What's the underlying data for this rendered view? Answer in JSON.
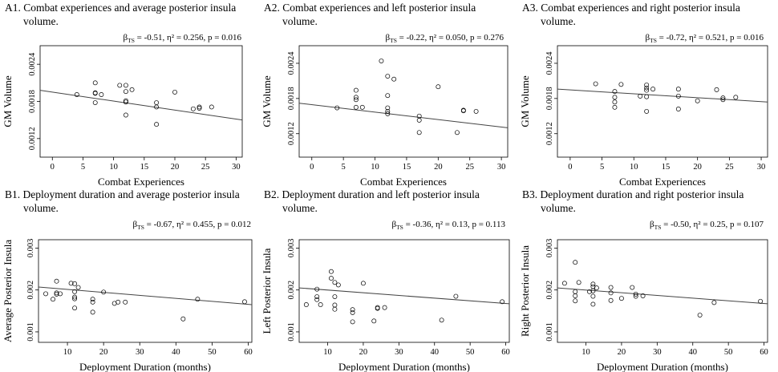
{
  "chart_data": [
    {
      "id": "A1",
      "type": "scatter",
      "title": "A1. Combat experiences and average posterior insula",
      "title_cont": "volume.",
      "stat_beta": "β",
      "stat_sub": "TS",
      "stat_rest": "= -0.51, η² = 0.256, p = 0.016",
      "xlabel": "Combat Experiences",
      "ylabel": "GM Volume",
      "xlim": [
        -2,
        31
      ],
      "ylim": [
        0.0009,
        0.0027
      ],
      "xticks": [
        0,
        5,
        10,
        15,
        20,
        25,
        30
      ],
      "xtick_labels": [
        "0",
        "5",
        "10",
        "15",
        "20",
        "25",
        "30"
      ],
      "yticks": [
        0.0012,
        0.0018,
        0.0024
      ],
      "ytick_labels": [
        "0.0012",
        "0.0018",
        "0.0024"
      ],
      "fit": [
        [
          -2,
          0.00198
        ],
        [
          31,
          0.0015
        ]
      ],
      "points": [
        [
          4,
          0.00191
        ],
        [
          7,
          0.00193
        ],
        [
          7,
          0.00194
        ],
        [
          7,
          0.00178
        ],
        [
          7,
          0.0021
        ],
        [
          8,
          0.00191
        ],
        [
          11,
          0.00206
        ],
        [
          12,
          0.00206
        ],
        [
          12,
          0.00196
        ],
        [
          12,
          0.00181
        ],
        [
          12,
          0.00179
        ],
        [
          12,
          0.00158
        ],
        [
          13,
          0.00199
        ],
        [
          17,
          0.00178
        ],
        [
          17,
          0.00171
        ],
        [
          17,
          0.00143
        ],
        [
          20,
          0.00195
        ],
        [
          23,
          0.00168
        ],
        [
          24,
          0.00171
        ],
        [
          24,
          0.00169
        ],
        [
          26,
          0.00171
        ]
      ]
    },
    {
      "id": "A2",
      "type": "scatter",
      "title": "A2. Combat experiences and left posterior insula",
      "title_cont": "volume.",
      "stat_beta": "β",
      "stat_sub": "TS",
      "stat_rest": "= -0.22, η² = 0.050, p = 0.276",
      "xlabel": "Combat Experiences",
      "ylabel": "GM Volume",
      "xlim": [
        -2,
        31
      ],
      "ylim": [
        0.0008,
        0.0027
      ],
      "xticks": [
        0,
        5,
        10,
        15,
        20,
        25,
        30
      ],
      "xtick_labels": [
        "0",
        "5",
        "10",
        "15",
        "20",
        "25",
        "30"
      ],
      "yticks": [
        0.0012,
        0.0018,
        0.0024
      ],
      "ytick_labels": [
        "0.0012",
        "0.0018",
        "0.0024"
      ],
      "fit": [
        [
          -2,
          0.00172
        ],
        [
          31,
          0.0013
        ]
      ],
      "points": [
        [
          4,
          0.00164
        ],
        [
          7,
          0.00194
        ],
        [
          7,
          0.00182
        ],
        [
          7,
          0.00178
        ],
        [
          7,
          0.00165
        ],
        [
          8,
          0.00165
        ],
        [
          11,
          0.00244
        ],
        [
          12,
          0.00218
        ],
        [
          12,
          0.00185
        ],
        [
          12,
          0.00164
        ],
        [
          12,
          0.00158
        ],
        [
          12,
          0.00154
        ],
        [
          13,
          0.00213
        ],
        [
          17,
          0.0015
        ],
        [
          17,
          0.00143
        ],
        [
          17,
          0.00122
        ],
        [
          20,
          0.002
        ],
        [
          23,
          0.00122
        ],
        [
          24,
          0.0016
        ],
        [
          24,
          0.00159
        ],
        [
          26,
          0.00158
        ]
      ]
    },
    {
      "id": "A3",
      "type": "scatter",
      "title": "A3. Combat experiences and right posterior insula",
      "title_cont": "volume.",
      "stat_beta": "β",
      "stat_sub": "TS",
      "stat_rest": "= -0.72, η² = 0.521, p = 0.016",
      "xlabel": "Combat Experiences",
      "ylabel": "GM Volume",
      "xlim": [
        -2,
        31
      ],
      "ylim": [
        0.0008,
        0.0027
      ],
      "xticks": [
        0,
        5,
        10,
        15,
        20,
        25,
        30
      ],
      "xtick_labels": [
        "0",
        "5",
        "10",
        "15",
        "20",
        "25",
        "30"
      ],
      "yticks": [
        0.0012,
        0.0018,
        0.0024
      ],
      "ytick_labels": [
        "0.0012",
        "0.0018",
        "0.0024"
      ],
      "fit": [
        [
          -2,
          0.00196
        ],
        [
          31,
          0.00174
        ]
      ],
      "points": [
        [
          4,
          0.00205
        ],
        [
          7,
          0.00192
        ],
        [
          7,
          0.00182
        ],
        [
          7,
          0.00174
        ],
        [
          7,
          0.00165
        ],
        [
          8,
          0.00204
        ],
        [
          11,
          0.00184
        ],
        [
          12,
          0.00203
        ],
        [
          12,
          0.00198
        ],
        [
          12,
          0.00194
        ],
        [
          12,
          0.00183
        ],
        [
          12,
          0.00158
        ],
        [
          13,
          0.00196
        ],
        [
          17,
          0.00196
        ],
        [
          17,
          0.00184
        ],
        [
          17,
          0.00162
        ],
        [
          20,
          0.00176
        ],
        [
          23,
          0.00195
        ],
        [
          24,
          0.00181
        ],
        [
          24,
          0.00178
        ],
        [
          26,
          0.00182
        ]
      ]
    },
    {
      "id": "B1",
      "type": "scatter",
      "title": "B1. Deployment duration and average posterior insula",
      "title_cont": "volume.",
      "stat_beta": "β",
      "stat_sub": "TS",
      "stat_rest": "= -0.67, η² = 0.455, p = 0.012",
      "xlabel": "Deployment Duration (months)",
      "ylabel": "Average Posterior Insula",
      "xlim": [
        2,
        61
      ],
      "ylim": [
        0.00075,
        0.0032
      ],
      "xticks": [
        10,
        20,
        30,
        40,
        50,
        60
      ],
      "xtick_labels": [
        "10",
        "20",
        "30",
        "40",
        "50",
        "60"
      ],
      "yticks": [
        0.001,
        0.002,
        0.003
      ],
      "ytick_labels": [
        "0.001",
        "0.002",
        "0.003"
      ],
      "fit": [
        [
          2,
          0.00207
        ],
        [
          61,
          0.00165
        ]
      ],
      "points": [
        [
          4,
          0.00191
        ],
        [
          6,
          0.00178
        ],
        [
          7,
          0.00221
        ],
        [
          7,
          0.00193
        ],
        [
          7,
          0.0019
        ],
        [
          8,
          0.00191
        ],
        [
          11,
          0.00216
        ],
        [
          12,
          0.00215
        ],
        [
          12,
          0.00196
        ],
        [
          12,
          0.00183
        ],
        [
          12,
          0.00179
        ],
        [
          12,
          0.00157
        ],
        [
          13,
          0.00206
        ],
        [
          17,
          0.00178
        ],
        [
          17,
          0.00171
        ],
        [
          17,
          0.00147
        ],
        [
          20,
          0.00195
        ],
        [
          23,
          0.00168
        ],
        [
          24,
          0.00171
        ],
        [
          26,
          0.00171
        ],
        [
          42,
          0.00131
        ],
        [
          46,
          0.00178
        ],
        [
          59,
          0.00172
        ]
      ]
    },
    {
      "id": "B2",
      "type": "scatter",
      "title": "B2. Deployment duration and left posterior insula",
      "title_cont": "volume.",
      "stat_beta": "β",
      "stat_sub": "TS",
      "stat_rest": "= -0.36, η² = 0.13, p = 0.113",
      "xlabel": "Deployment Duration (months)",
      "ylabel": "Left Posterior Insula",
      "xlim": [
        2,
        61
      ],
      "ylim": [
        0.00075,
        0.0032
      ],
      "xticks": [
        10,
        20,
        30,
        40,
        50,
        60
      ],
      "xtick_labels": [
        "10",
        "20",
        "30",
        "40",
        "50",
        "60"
      ],
      "yticks": [
        0.001,
        0.002,
        0.003
      ],
      "ytick_labels": [
        "0.001",
        "0.002",
        "0.003"
      ],
      "fit": [
        [
          2,
          0.00205
        ],
        [
          61,
          0.00167
        ]
      ],
      "points": [
        [
          4,
          0.00165
        ],
        [
          7,
          0.00202
        ],
        [
          7,
          0.00184
        ],
        [
          7,
          0.00177
        ],
        [
          8,
          0.00165
        ],
        [
          11,
          0.00244
        ],
        [
          11,
          0.00228
        ],
        [
          12,
          0.00218
        ],
        [
          12,
          0.00184
        ],
        [
          12,
          0.00164
        ],
        [
          12,
          0.00154
        ],
        [
          13,
          0.00212
        ],
        [
          17,
          0.00153
        ],
        [
          17,
          0.00146
        ],
        [
          17,
          0.00124
        ],
        [
          20,
          0.00216
        ],
        [
          23,
          0.00126
        ],
        [
          24,
          0.00158
        ],
        [
          24,
          0.00156
        ],
        [
          26,
          0.00158
        ],
        [
          42,
          0.00128
        ],
        [
          46,
          0.00185
        ],
        [
          59,
          0.00172
        ]
      ]
    },
    {
      "id": "B3",
      "type": "scatter",
      "title": "B3. Deployment duration and right posterior insula",
      "title_cont": "volume.",
      "stat_beta": "β",
      "stat_sub": "TS",
      "stat_rest": "= -0.50, η² = 0.25, p = 0.107",
      "xlabel": "Deployment Duration (months)",
      "ylabel": "Right Posterior Insula",
      "xlim": [
        2,
        61
      ],
      "ylim": [
        0.00075,
        0.0032
      ],
      "xticks": [
        10,
        20,
        30,
        40,
        50,
        60
      ],
      "xtick_labels": [
        "10",
        "20",
        "30",
        "40",
        "50",
        "60"
      ],
      "yticks": [
        0.001,
        0.002,
        0.003
      ],
      "ytick_labels": [
        "0.001",
        "0.002",
        "0.003"
      ],
      "fit": [
        [
          2,
          0.00205
        ],
        [
          61,
          0.00167
        ]
      ],
      "points": [
        [
          4,
          0.00216
        ],
        [
          7,
          0.00266
        ],
        [
          7,
          0.00196
        ],
        [
          7,
          0.00186
        ],
        [
          7,
          0.00174
        ],
        [
          8,
          0.00218
        ],
        [
          11,
          0.00196
        ],
        [
          12,
          0.00214
        ],
        [
          12,
          0.00208
        ],
        [
          12,
          0.00198
        ],
        [
          12,
          0.00185
        ],
        [
          12,
          0.00166
        ],
        [
          13,
          0.00205
        ],
        [
          17,
          0.00206
        ],
        [
          17,
          0.00193
        ],
        [
          17,
          0.00175
        ],
        [
          20,
          0.0018
        ],
        [
          23,
          0.00206
        ],
        [
          24,
          0.0019
        ],
        [
          24,
          0.00185
        ],
        [
          26,
          0.00186
        ],
        [
          42,
          0.0014
        ],
        [
          46,
          0.0017
        ],
        [
          59,
          0.00173
        ]
      ]
    }
  ]
}
